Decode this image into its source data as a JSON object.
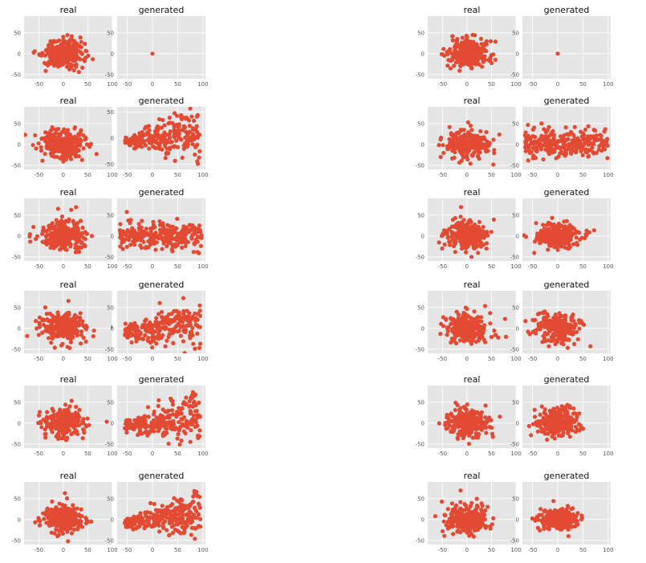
{
  "colors": {
    "panel_bg": "#e5e5e5",
    "grid": "#ffffff",
    "marker": "#e24a33",
    "tick_text": "#555555"
  },
  "chart_data": [
    {
      "type": "scatter",
      "title": "real",
      "xlim": [
        -80,
        100
      ],
      "ylim": [
        -60,
        90
      ],
      "xticks": [
        -50,
        0,
        50,
        100
      ],
      "yticks": [
        -50,
        0,
        50
      ],
      "grid": true,
      "pattern": "blob"
    },
    {
      "type": "scatter",
      "title": "generated",
      "xlim": [
        -70,
        105
      ],
      "ylim": [
        -60,
        90
      ],
      "xticks": [
        -50,
        0,
        50,
        100
      ],
      "yticks": [
        -50,
        0,
        50
      ],
      "grid": true,
      "pattern": "point"
    },
    {
      "type": "scatter",
      "title": "real",
      "xlim": [
        -80,
        100
      ],
      "ylim": [
        -60,
        90
      ],
      "xticks": [
        -50,
        0,
        50,
        100
      ],
      "yticks": [
        -50,
        0,
        50
      ],
      "grid": true,
      "pattern": "blob"
    },
    {
      "type": "scatter",
      "title": "generated",
      "xlim": [
        -70,
        105
      ],
      "ylim": [
        -60,
        90
      ],
      "xticks": [
        -50,
        0,
        50,
        100
      ],
      "yticks": [
        -50,
        0,
        50
      ],
      "grid": true,
      "pattern": "point"
    },
    {
      "type": "scatter",
      "title": "real",
      "xlim": [
        -80,
        100
      ],
      "ylim": [
        -60,
        90
      ],
      "xticks": [
        -50,
        0,
        50,
        100
      ],
      "yticks": [
        -50,
        0,
        50
      ],
      "grid": true,
      "pattern": "blob"
    },
    {
      "type": "scatter",
      "title": "generated",
      "xlim": [
        -70,
        105
      ],
      "ylim": [
        -60,
        60
      ],
      "xticks": [
        -50,
        0,
        50,
        100
      ],
      "yticks": [
        -50,
        0,
        50
      ],
      "grid": true,
      "pattern": "wedge"
    },
    {
      "type": "scatter",
      "title": "real",
      "xlim": [
        -80,
        100
      ],
      "ylim": [
        -60,
        90
      ],
      "xticks": [
        -50,
        0,
        50,
        100
      ],
      "yticks": [
        -50,
        0,
        50
      ],
      "grid": true,
      "pattern": "blob"
    },
    {
      "type": "scatter",
      "title": "generated",
      "xlim": [
        -70,
        105
      ],
      "ylim": [
        -60,
        90
      ],
      "xticks": [
        -50,
        0,
        50,
        100
      ],
      "yticks": [
        -50,
        0,
        50
      ],
      "grid": true,
      "pattern": "wide"
    },
    {
      "type": "scatter",
      "title": "real",
      "xlim": [
        -80,
        100
      ],
      "ylim": [
        -60,
        90
      ],
      "xticks": [
        -50,
        0,
        50,
        100
      ],
      "yticks": [
        -50,
        0,
        50
      ],
      "grid": true,
      "pattern": "blob"
    },
    {
      "type": "scatter",
      "title": "generated",
      "xlim": [
        -70,
        105
      ],
      "ylim": [
        -60,
        90
      ],
      "xticks": [
        -50,
        0,
        50,
        100
      ],
      "yticks": [
        -50,
        0,
        50
      ],
      "grid": true,
      "pattern": "wide"
    },
    {
      "type": "scatter",
      "title": "real",
      "xlim": [
        -80,
        100
      ],
      "ylim": [
        -60,
        90
      ],
      "xticks": [
        -50,
        0,
        50,
        100
      ],
      "yticks": [
        -50,
        0,
        50
      ],
      "grid": true,
      "pattern": "blob"
    },
    {
      "type": "scatter",
      "title": "generated",
      "xlim": [
        -70,
        105
      ],
      "ylim": [
        -60,
        90
      ],
      "xticks": [
        -50,
        0,
        50,
        100
      ],
      "yticks": [
        -50,
        0,
        50
      ],
      "grid": true,
      "pattern": "blob2"
    },
    {
      "type": "scatter",
      "title": "real",
      "xlim": [
        -80,
        100
      ],
      "ylim": [
        -60,
        90
      ],
      "xticks": [
        -50,
        0,
        50,
        100
      ],
      "yticks": [
        -50,
        0,
        50
      ],
      "grid": true,
      "pattern": "blob"
    },
    {
      "type": "scatter",
      "title": "generated",
      "xlim": [
        -70,
        105
      ],
      "ylim": [
        -60,
        90
      ],
      "xticks": [
        -50,
        0,
        50,
        100
      ],
      "yticks": [
        -50,
        0,
        50
      ],
      "grid": true,
      "pattern": "cone"
    },
    {
      "type": "scatter",
      "title": "real",
      "xlim": [
        -80,
        100
      ],
      "ylim": [
        -60,
        90
      ],
      "xticks": [
        -50,
        0,
        50,
        100
      ],
      "yticks": [
        -50,
        0,
        50
      ],
      "grid": true,
      "pattern": "blob"
    },
    {
      "type": "scatter",
      "title": "generated",
      "xlim": [
        -70,
        105
      ],
      "ylim": [
        -60,
        90
      ],
      "xticks": [
        -50,
        0,
        50,
        100
      ],
      "yticks": [
        -50,
        0,
        50
      ],
      "grid": true,
      "pattern": "blob"
    },
    {
      "type": "scatter",
      "title": "real",
      "xlim": [
        -80,
        100
      ],
      "ylim": [
        -60,
        90
      ],
      "xticks": [
        -50,
        0,
        50,
        100
      ],
      "yticks": [
        -50,
        0,
        50
      ],
      "grid": true,
      "pattern": "blob"
    },
    {
      "type": "scatter",
      "title": "generated",
      "xlim": [
        -70,
        105
      ],
      "ylim": [
        -60,
        90
      ],
      "xticks": [
        -50,
        0,
        50,
        100
      ],
      "yticks": [
        -50,
        0,
        50
      ],
      "grid": true,
      "pattern": "cone"
    },
    {
      "type": "scatter",
      "title": "real",
      "xlim": [
        -80,
        100
      ],
      "ylim": [
        -60,
        90
      ],
      "xticks": [
        -50,
        0,
        50,
        100
      ],
      "yticks": [
        -50,
        0,
        50
      ],
      "grid": true,
      "pattern": "blob"
    },
    {
      "type": "scatter",
      "title": "generated",
      "xlim": [
        -70,
        105
      ],
      "ylim": [
        -60,
        90
      ],
      "xticks": [
        -50,
        0,
        50,
        100
      ],
      "yticks": [
        -50,
        0,
        50
      ],
      "grid": true,
      "pattern": "blob"
    },
    {
      "type": "scatter",
      "title": "real",
      "xlim": [
        -80,
        100
      ],
      "ylim": [
        -60,
        90
      ],
      "xticks": [
        -50,
        0,
        50,
        100
      ],
      "yticks": [
        -50,
        0,
        50
      ],
      "grid": true,
      "pattern": "blob"
    },
    {
      "type": "scatter",
      "title": "generated",
      "xlim": [
        -70,
        105
      ],
      "ylim": [
        -60,
        90
      ],
      "xticks": [
        -50,
        0,
        50,
        100
      ],
      "yticks": [
        -50,
        0,
        50
      ],
      "grid": true,
      "pattern": "cone"
    },
    {
      "type": "scatter",
      "title": "real",
      "xlim": [
        -80,
        100
      ],
      "ylim": [
        -60,
        90
      ],
      "xticks": [
        -50,
        0,
        50,
        100
      ],
      "yticks": [
        -50,
        0,
        50
      ],
      "grid": true,
      "pattern": "blob"
    },
    {
      "type": "scatter",
      "title": "generated",
      "xlim": [
        -70,
        105
      ],
      "ylim": [
        -60,
        90
      ],
      "xticks": [
        -50,
        0,
        50,
        100
      ],
      "yticks": [
        -50,
        0,
        50
      ],
      "grid": true,
      "pattern": "small"
    }
  ]
}
